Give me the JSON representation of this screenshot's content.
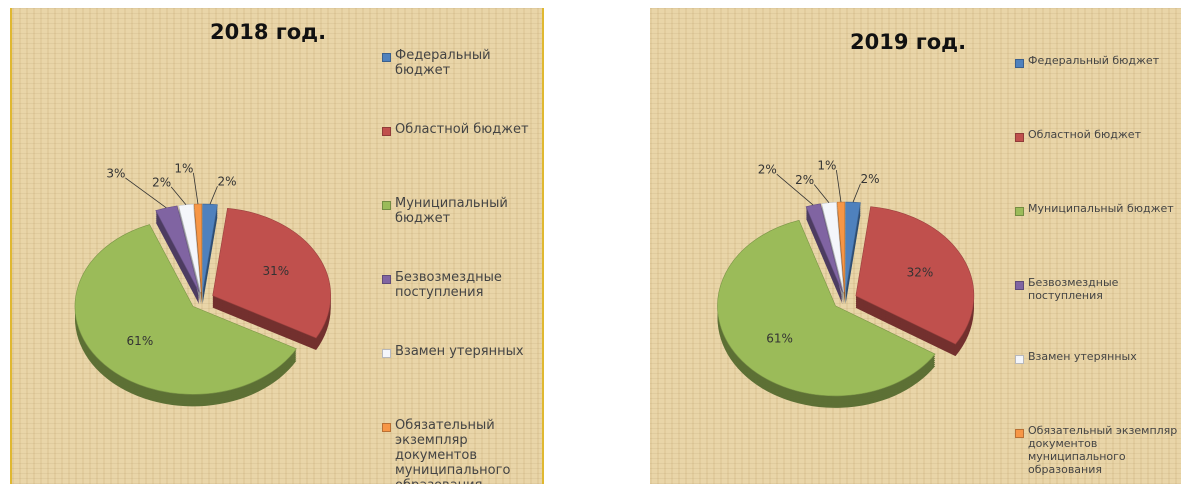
{
  "chart_data": [
    {
      "type": "pie",
      "title": "2018 год.",
      "categories": [
        "Федеральный бюджет",
        "Областной бюджет",
        "Муниципальный бюджет",
        "Безвозмездные поступления",
        "Взамен утерянных",
        "Обязательный экземпляр документов муниципального образования"
      ],
      "values": [
        2,
        31,
        61,
        3,
        2,
        1
      ],
      "value_labels": [
        "2%",
        "31%",
        "61%",
        "3%",
        "2%",
        "1%"
      ],
      "colors": [
        "#4f81bd",
        "#c0504d",
        "#9bbb59",
        "#8064a2",
        "#f4f6fb",
        "#f79646"
      ]
    },
    {
      "type": "pie",
      "title": "2019 год.",
      "categories": [
        "Федеральный бюджет",
        "Областной бюджет",
        "Муниципальный бюджет",
        "Безвозмездные поступления",
        "Взамен утерянных",
        "Обязательный экземпляр документов муниципального образования"
      ],
      "values": [
        2,
        32,
        61,
        2,
        2,
        1
      ],
      "value_labels": [
        "2%",
        "32%",
        "61%",
        "2%",
        "2%",
        "1%"
      ],
      "colors": [
        "#4f81bd",
        "#c0504d",
        "#9bbb59",
        "#8064a2",
        "#f4f6fb",
        "#f79646"
      ]
    }
  ]
}
